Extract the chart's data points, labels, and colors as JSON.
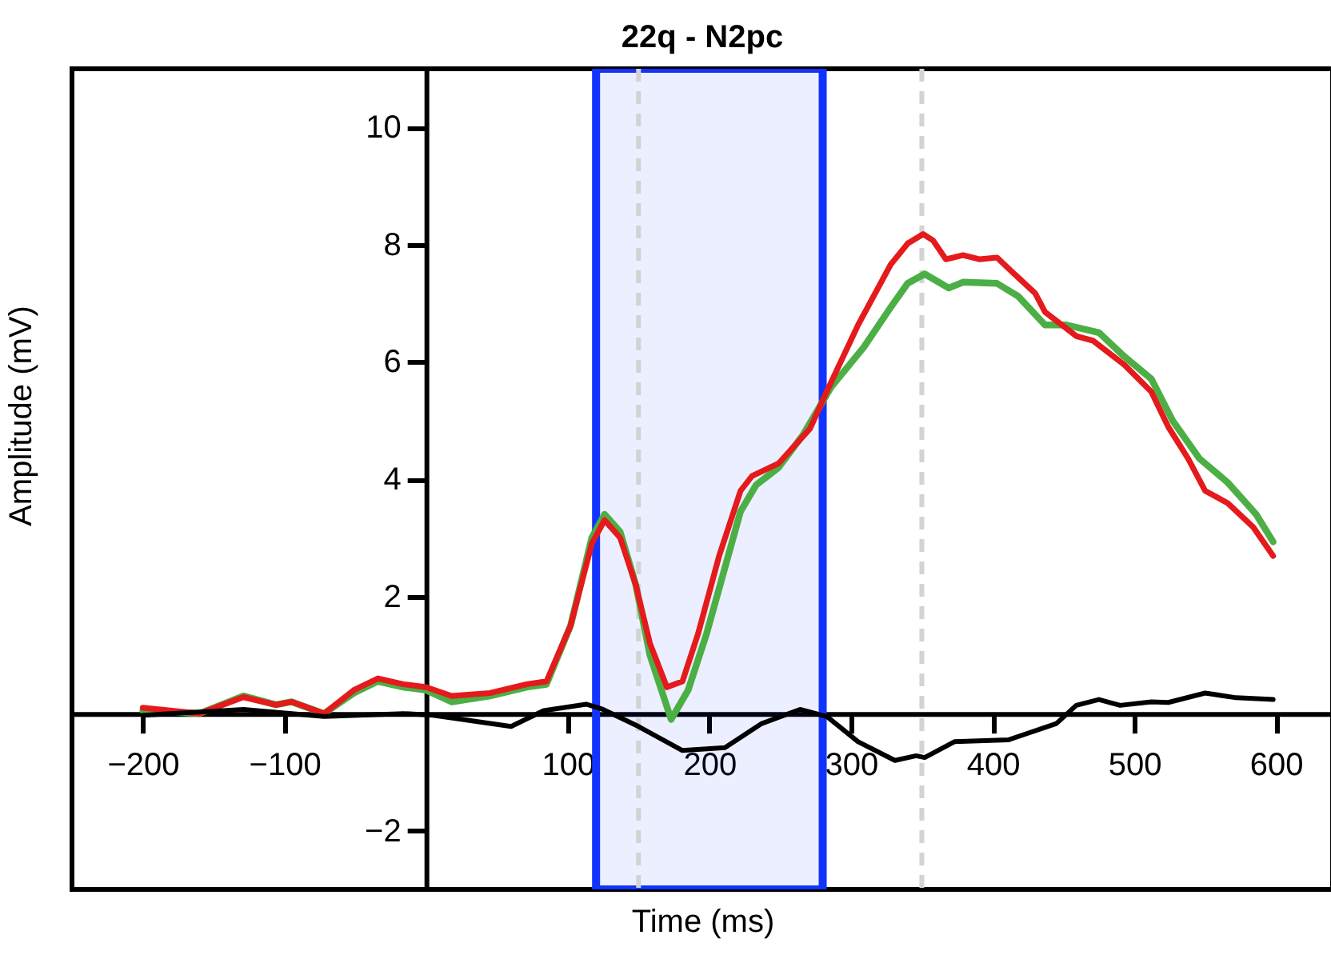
{
  "chart_data": {
    "type": "line",
    "title": "22q - N2pc",
    "xlabel": "Time (ms)",
    "ylabel": "Amplitude (mV)",
    "xlim": [
      -250,
      640
    ],
    "ylim": [
      -3,
      11
    ],
    "xticks": [
      -200,
      -100,
      100,
      200,
      300,
      400,
      500,
      600
    ],
    "yticks": [
      -2,
      2,
      4,
      6,
      8,
      10
    ],
    "grid": false,
    "marker": "none",
    "line_style": "solid",
    "series": [
      {
        "color": "#4caf45",
        "x": [
          -200,
          -160,
          -129,
          -106,
          -95,
          -72,
          -51,
          -34,
          -16,
          0,
          18,
          45,
          71,
          85,
          102,
          117,
          126,
          137,
          148,
          158,
          173,
          185,
          198,
          222,
          233,
          249,
          266,
          286,
          309,
          328,
          340,
          352,
          369,
          379,
          403,
          418,
          437,
          452,
          475,
          493,
          512,
          527,
          546,
          566,
          586,
          598
        ],
        "values": [
          0.05,
          0.0,
          0.3,
          0.15,
          0.2,
          0.0,
          0.35,
          0.55,
          0.45,
          0.4,
          0.2,
          0.3,
          0.45,
          0.5,
          1.5,
          3.0,
          3.4,
          3.1,
          2.2,
          1.0,
          -0.1,
          0.4,
          1.36,
          3.45,
          3.9,
          4.2,
          4.75,
          5.57,
          6.25,
          6.93,
          7.34,
          7.5,
          7.26,
          7.36,
          7.34,
          7.12,
          6.63,
          6.63,
          6.5,
          6.09,
          5.71,
          5.0,
          4.35,
          3.94,
          3.4,
          2.93
        ]
      },
      {
        "color": "#e41a1c",
        "x": [
          -200,
          -160,
          -129,
          -106,
          -95,
          -72,
          -51,
          -34,
          -16,
          0,
          18,
          45,
          71,
          85,
          102,
          117,
          126,
          137,
          148,
          158,
          170,
          181,
          192,
          207,
          222,
          230,
          249,
          271,
          283,
          305,
          328,
          340,
          351,
          358,
          367,
          379,
          391,
          403,
          414,
          430,
          437,
          459,
          471,
          493,
          512,
          524,
          538,
          550,
          566,
          584,
          598
        ],
        "values": [
          0.1,
          0.0,
          0.28,
          0.15,
          0.2,
          0.0,
          0.4,
          0.6,
          0.5,
          0.45,
          0.3,
          0.35,
          0.5,
          0.55,
          1.5,
          2.9,
          3.3,
          3.0,
          2.2,
          1.2,
          0.45,
          0.55,
          1.36,
          2.7,
          3.8,
          4.05,
          4.27,
          4.86,
          5.5,
          6.63,
          7.66,
          8.02,
          8.18,
          8.07,
          7.75,
          7.82,
          7.75,
          7.78,
          7.53,
          7.17,
          6.85,
          6.44,
          6.36,
          5.95,
          5.49,
          4.89,
          4.35,
          3.8,
          3.59,
          3.18,
          2.69
        ]
      },
      {
        "color": "#000000",
        "x": [
          -200,
          -129,
          -72,
          -16,
          5,
          60,
          83,
          113,
          124,
          150,
          181,
          211,
          237,
          264,
          283,
          305,
          331,
          346,
          352,
          373,
          411,
          445,
          459,
          475,
          490,
          512,
          524,
          550,
          572,
          598
        ],
        "values": [
          -0.03,
          0.07,
          -0.05,
          0.0,
          -0.03,
          -0.22,
          0.05,
          0.16,
          0.08,
          -0.22,
          -0.63,
          -0.58,
          -0.17,
          0.07,
          -0.05,
          -0.48,
          -0.8,
          -0.72,
          -0.75,
          -0.48,
          -0.45,
          -0.17,
          0.14,
          0.24,
          0.14,
          0.2,
          0.19,
          0.35,
          0.27,
          0.24
        ]
      }
    ],
    "ref_lines": [
      {
        "axis": "x",
        "value": 150,
        "color": "#d3d3d3",
        "line_style": "dashed"
      },
      {
        "axis": "x",
        "value": 350,
        "color": "#d3d3d3",
        "line_style": "dashed"
      }
    ],
    "bands": [
      {
        "axis": "x",
        "from": 120,
        "to": 280,
        "color": "#1133ff"
      }
    ]
  }
}
